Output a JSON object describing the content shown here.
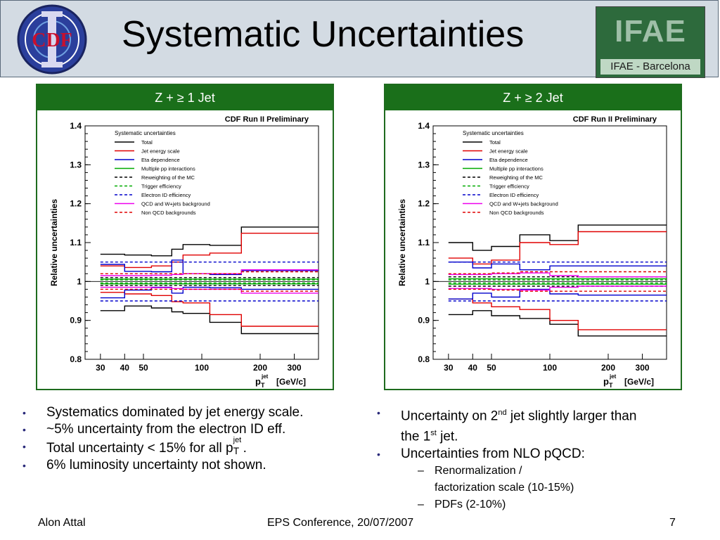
{
  "slide": {
    "title": "Systematic Uncertainties",
    "ifae_logo_text": "IFAE",
    "ifae_sub": "IFAE - Barcelona",
    "left_bullets": [
      "Systematics dominated by jet energy scale.",
      "~5% uncertainty from the electron ID eff.",
      "Total uncertainty < 15% for all p",
      "6% luminosity uncertainty not shown."
    ],
    "pt_sup": "jet",
    "pt_sub": "T",
    "period": ".",
    "right_bullets": {
      "b1_part1": "Uncertainty on 2",
      "b1_sup1": "nd",
      "b1_part2": " jet slightly larger than",
      "b1_part3": "the 1",
      "b1_sup2": "st",
      "b1_part4": " jet.",
      "b2": "Uncertainties from NLO pQCD:",
      "sub1a": "Renormalization /",
      "sub1b": "factorization scale (10-15%)",
      "sub2": "PDFs (2-10%)"
    },
    "footer": {
      "author": "Alon Attal",
      "conference": "EPS Conference, 20/07/2007",
      "page": "7"
    },
    "icons": {
      "bullet": "•",
      "dash": "–"
    }
  },
  "chart_data": [
    {
      "type": "line",
      "panel_title": "Z + ≥ 1 Jet",
      "title": "CDF Run II Preliminary",
      "ylabel": "Relative uncertainties",
      "xlabel": "p",
      "xlabel_sup": "jet",
      "xlabel_sub": "T",
      "xunit": "[GeV/c]",
      "xscale": "log",
      "ylim": [
        0.8,
        1.4
      ],
      "xticks": [
        30,
        40,
        50,
        100,
        200,
        300
      ],
      "yticks": [
        "0.8",
        "0.9",
        "1",
        "1.1",
        "1.2",
        "1.3",
        "1.4"
      ],
      "legend_header": "Systematic uncertainties",
      "bins": [
        30,
        40,
        55,
        70,
        80,
        110,
        160,
        400
      ],
      "series": [
        {
          "name": "Total",
          "color": "#000000",
          "dash": "",
          "up": [
            1.07,
            1.068,
            1.066,
            1.083,
            1.095,
            1.093,
            1.14
          ],
          "down": [
            0.925,
            0.937,
            0.932,
            0.922,
            0.918,
            0.895,
            0.866
          ]
        },
        {
          "name": "Jet energy scale",
          "color": "#e00000",
          "dash": "",
          "up": [
            1.04,
            1.036,
            1.04,
            1.05,
            1.068,
            1.073,
            1.124
          ],
          "down": [
            0.972,
            0.968,
            0.964,
            0.948,
            0.945,
            0.915,
            0.885
          ]
        },
        {
          "name": "Eta dependence",
          "color": "#0000cc",
          "dash": "",
          "up": [
            1.044,
            1.026,
            1.025,
            1.055,
            1.02,
            1.018,
            1.028
          ],
          "down": [
            0.958,
            0.978,
            0.985,
            0.97,
            0.985,
            0.984,
            0.98
          ]
        },
        {
          "name": "Multiple pp interactions",
          "color": "#00aa00",
          "dash": "",
          "up": [
            1.006,
            1.006,
            1.006,
            1.006,
            1.006,
            1.006,
            1.006
          ],
          "down": [
            0.994,
            0.994,
            0.994,
            0.994,
            0.994,
            0.994,
            0.994
          ]
        },
        {
          "name": "Reweighting of the MC",
          "color": "#000000",
          "dash": "4,3",
          "up": [
            1.01,
            1.01,
            1.01,
            1.01,
            1.01,
            1.01,
            1.01
          ],
          "down": [
            0.99,
            0.99,
            0.99,
            0.99,
            0.99,
            0.99,
            0.99
          ]
        },
        {
          "name": "Trigger efficiency",
          "color": "#00aa00",
          "dash": "4,3",
          "up": [
            1.004,
            1.004,
            1.004,
            1.004,
            1.004,
            1.004,
            1.004
          ],
          "down": [
            0.996,
            0.996,
            0.996,
            0.996,
            0.996,
            0.996,
            0.996
          ]
        },
        {
          "name": "Electron ID efficiency",
          "color": "#0000cc",
          "dash": "4,3",
          "up": [
            1.05,
            1.05,
            1.05,
            1.05,
            1.05,
            1.05,
            1.05
          ],
          "down": [
            0.95,
            0.95,
            0.95,
            0.95,
            0.95,
            0.95,
            0.95
          ]
        },
        {
          "name": "QCD and W+jets background",
          "color": "#ee00ee",
          "dash": "",
          "up": [
            1.015,
            1.015,
            1.016,
            1.018,
            1.02,
            1.02,
            1.03
          ],
          "down": [
            0.985,
            0.985,
            0.984,
            0.982,
            0.98,
            0.98,
            0.97
          ]
        },
        {
          "name": "Non QCD backgrounds",
          "color": "#e00000",
          "dash": "4,3",
          "up": [
            1.02,
            1.02,
            1.02,
            1.02,
            1.02,
            1.02,
            1.025
          ],
          "down": [
            0.98,
            0.98,
            0.98,
            0.98,
            0.98,
            0.98,
            0.975
          ]
        }
      ]
    },
    {
      "type": "line",
      "panel_title": "Z + ≥ 2 Jet",
      "title": "CDF Run II Preliminary",
      "ylabel": "Relative uncertainties",
      "xlabel": "p",
      "xlabel_sup": "jet",
      "xlabel_sub": "T",
      "xunit": "[GeV/c]",
      "xscale": "log",
      "ylim": [
        0.8,
        1.4
      ],
      "xticks": [
        30,
        40,
        50,
        100,
        200,
        300
      ],
      "yticks": [
        "0.8",
        "0.9",
        "1",
        "1.1",
        "1.2",
        "1.3",
        "1.4"
      ],
      "legend_header": "Systematic uncertainties",
      "bins": [
        30,
        40,
        50,
        70,
        100,
        140,
        400
      ],
      "series": [
        {
          "name": "Total",
          "color": "#000000",
          "dash": "",
          "up": [
            1.1,
            1.08,
            1.09,
            1.12,
            1.105,
            1.145
          ],
          "down": [
            0.915,
            0.925,
            0.912,
            0.905,
            0.89,
            0.86
          ]
        },
        {
          "name": "Jet energy scale",
          "color": "#e00000",
          "dash": "",
          "up": [
            1.06,
            1.045,
            1.055,
            1.1,
            1.095,
            1.128
          ],
          "down": [
            0.955,
            0.945,
            0.935,
            0.928,
            0.9,
            0.876
          ]
        },
        {
          "name": "Eta dependence",
          "color": "#0000cc",
          "dash": "",
          "up": [
            1.05,
            1.035,
            1.045,
            1.03,
            1.04,
            1.04
          ],
          "down": [
            0.955,
            0.97,
            0.96,
            0.98,
            0.968,
            0.965
          ]
        },
        {
          "name": "Multiple pp interactions",
          "color": "#00aa00",
          "dash": "",
          "up": [
            1.007,
            1.007,
            1.007,
            1.007,
            1.007,
            1.007
          ],
          "down": [
            0.993,
            0.993,
            0.993,
            0.993,
            0.993,
            0.993
          ]
        },
        {
          "name": "Reweighting of the MC",
          "color": "#000000",
          "dash": "4,3",
          "up": [
            1.012,
            1.012,
            1.012,
            1.012,
            1.012,
            1.012
          ],
          "down": [
            0.988,
            0.988,
            0.988,
            0.988,
            0.988,
            0.988
          ]
        },
        {
          "name": "Trigger efficiency",
          "color": "#00aa00",
          "dash": "4,3",
          "up": [
            1.004,
            1.004,
            1.004,
            1.004,
            1.004,
            1.004
          ],
          "down": [
            0.996,
            0.996,
            0.996,
            0.996,
            0.996,
            0.996
          ]
        },
        {
          "name": "Electron ID efficiency",
          "color": "#0000cc",
          "dash": "4,3",
          "up": [
            1.05,
            1.05,
            1.05,
            1.05,
            1.05,
            1.05
          ],
          "down": [
            0.95,
            0.95,
            0.95,
            0.95,
            0.95,
            0.95
          ]
        },
        {
          "name": "QCD and W+jets background",
          "color": "#ee00ee",
          "dash": "",
          "up": [
            1.018,
            1.018,
            1.02,
            1.022,
            1.015,
            1.012
          ],
          "down": [
            0.982,
            0.982,
            0.98,
            0.978,
            0.985,
            0.988
          ]
        },
        {
          "name": "Non QCD backgrounds",
          "color": "#e00000",
          "dash": "4,3",
          "up": [
            1.02,
            1.02,
            1.022,
            1.025,
            1.025,
            1.025
          ],
          "down": [
            0.98,
            0.98,
            0.978,
            0.975,
            0.975,
            0.975
          ]
        }
      ]
    }
  ]
}
